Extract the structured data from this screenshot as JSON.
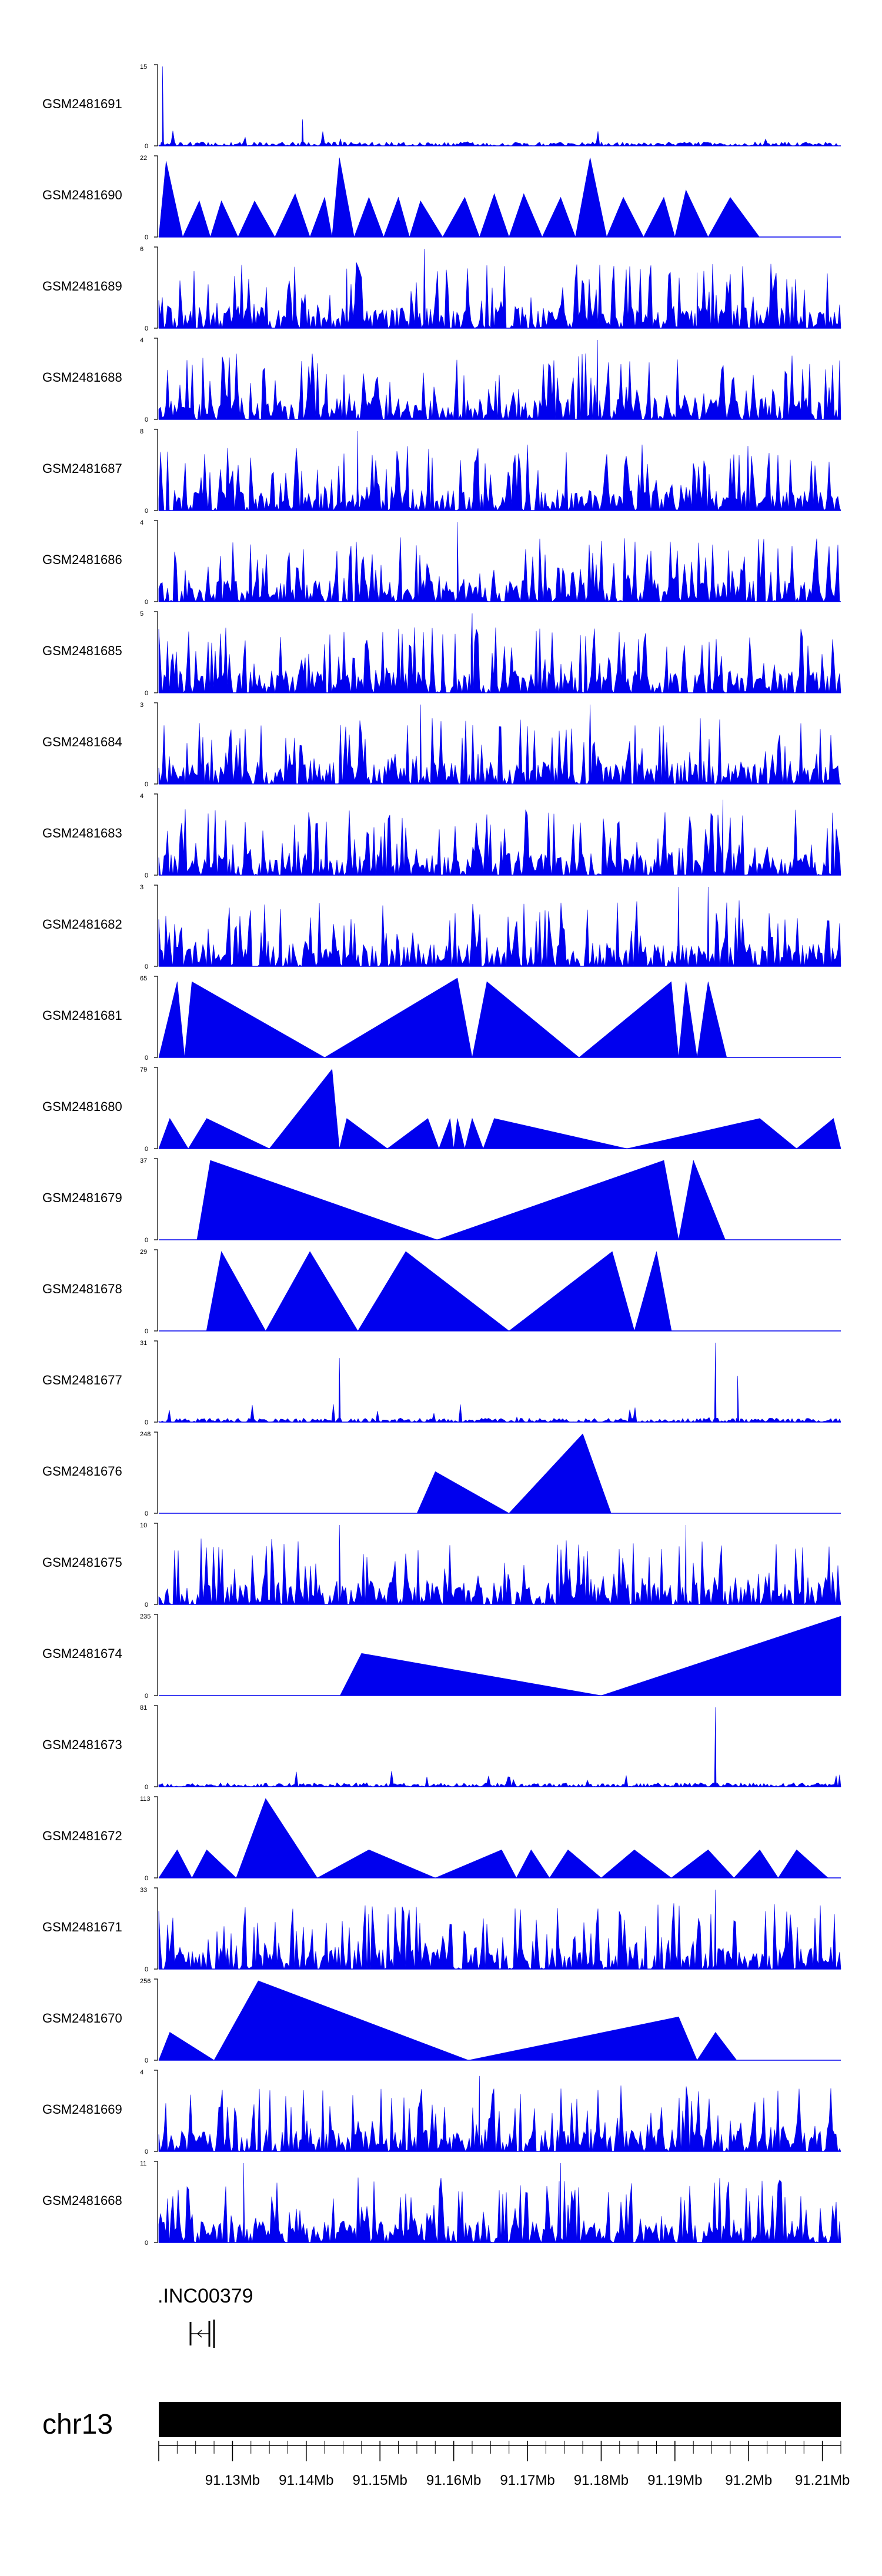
{
  "chart_data": {
    "type": "area",
    "title": "",
    "chromosome": "chr13",
    "gene_label": ".INC00379",
    "axis_unit": "Mb",
    "x_range_mb": [
      91.12,
      91.2125
    ],
    "x_tick_labels": [
      "91.13Mb",
      "91.14Mb",
      "91.15Mb",
      "91.16Mb",
      "91.17Mb",
      "91.18Mb",
      "91.19Mb",
      "91.2Mb",
      "91.21Mb"
    ],
    "x_tick_values": [
      91.13,
      91.14,
      91.15,
      91.16,
      91.17,
      91.18,
      91.19,
      91.2,
      91.21
    ],
    "series_color": "#0000ee",
    "tracks": [
      {
        "name": "GSM2481691",
        "ymax": "15",
        "max": 15,
        "style": "sparse",
        "peaks": [
          [
            91.1205,
            15
          ],
          [
            91.1395,
            5
          ]
        ]
      },
      {
        "name": "GSM2481690",
        "ymax": "22",
        "max": 22,
        "style": "tri",
        "peaks": [
          [
            91.121,
            21
          ],
          [
            91.1255,
            10
          ],
          [
            91.1285,
            10
          ],
          [
            91.133,
            10
          ],
          [
            91.1385,
            12
          ],
          [
            91.1425,
            11
          ],
          [
            91.1445,
            22
          ],
          [
            91.1485,
            11
          ],
          [
            91.1525,
            11
          ],
          [
            91.1555,
            10
          ],
          [
            91.1615,
            11
          ],
          [
            91.1655,
            12
          ],
          [
            91.1695,
            12
          ],
          [
            91.1745,
            11
          ],
          [
            91.1785,
            22
          ],
          [
            91.183,
            11
          ],
          [
            91.1885,
            11
          ],
          [
            91.1915,
            13
          ],
          [
            91.1975,
            11
          ]
        ]
      },
      {
        "name": "GSM2481689",
        "ymax": "6",
        "max": 6,
        "style": "noise",
        "peaks": [
          [
            91.156,
            6
          ],
          [
            91.1455,
            4.5
          ],
          [
            91.193,
            4.2
          ]
        ]
      },
      {
        "name": "GSM2481688",
        "ymax": "4",
        "max": 4,
        "style": "noise",
        "peaks": [
          [
            91.1795,
            4
          ]
        ]
      },
      {
        "name": "GSM2481687",
        "ymax": "8",
        "max": 8,
        "style": "noise",
        "peaks": [
          [
            91.147,
            8
          ]
        ]
      },
      {
        "name": "GSM2481686",
        "ymax": "4",
        "max": 4,
        "style": "noise",
        "peaks": [
          [
            91.1605,
            4
          ]
        ]
      },
      {
        "name": "GSM2481685",
        "ymax": "5",
        "max": 5,
        "style": "noise",
        "peaks": [
          [
            91.1625,
            5
          ]
        ]
      },
      {
        "name": "GSM2481684",
        "ymax": "3",
        "max": 3,
        "style": "noise",
        "peaks": [
          [
            91.1555,
            3
          ],
          [
            91.1785,
            3
          ]
        ]
      },
      {
        "name": "GSM2481683",
        "ymax": "4",
        "max": 4,
        "style": "noise",
        "peaks": [
          [
            91.1965,
            3.8
          ]
        ]
      },
      {
        "name": "GSM2481682",
        "ymax": "3",
        "max": 3,
        "style": "noise",
        "peaks": [
          [
            91.1905,
            3
          ],
          [
            91.1945,
            3
          ]
        ]
      },
      {
        "name": "GSM2481681",
        "ymax": "65",
        "max": 65,
        "style": "tri",
        "peaks": [
          [
            91.1225,
            62
          ],
          [
            91.1245,
            62
          ],
          [
            91.1605,
            65
          ],
          [
            91.1645,
            62
          ],
          [
            91.1895,
            62
          ],
          [
            91.1915,
            62
          ],
          [
            91.1945,
            62
          ]
        ]
      },
      {
        "name": "GSM2481680",
        "ymax": "79",
        "max": 79,
        "style": "tri",
        "peaks": [
          [
            91.1215,
            30
          ],
          [
            91.1265,
            30
          ],
          [
            91.1435,
            79
          ],
          [
            91.1455,
            30
          ],
          [
            91.1565,
            30
          ],
          [
            91.1595,
            30
          ],
          [
            91.1605,
            30
          ],
          [
            91.1625,
            30
          ],
          [
            91.1655,
            30
          ],
          [
            91.2015,
            30
          ],
          [
            91.2115,
            30
          ]
        ]
      },
      {
        "name": "GSM2481679",
        "ymax": "37",
        "max": 37,
        "style": "tri",
        "peaks": [
          [
            91.127,
            37
          ],
          [
            91.1885,
            37
          ],
          [
            91.1925,
            37
          ]
        ]
      },
      {
        "name": "GSM2481678",
        "ymax": "29",
        "max": 29,
        "style": "tri",
        "peaks": [
          [
            91.1285,
            29
          ],
          [
            91.1405,
            29
          ],
          [
            91.1535,
            29
          ],
          [
            91.1815,
            29
          ],
          [
            91.1875,
            29
          ]
        ]
      },
      {
        "name": "GSM2481677",
        "ymax": "31",
        "max": 31,
        "style": "sparse",
        "peaks": [
          [
            91.1445,
            25
          ],
          [
            91.1955,
            31
          ],
          [
            91.1985,
            18
          ]
        ]
      },
      {
        "name": "GSM2481676",
        "ymax": "248",
        "max": 248,
        "style": "tri",
        "peaks": [
          [
            91.1575,
            130
          ],
          [
            91.1775,
            248
          ]
        ]
      },
      {
        "name": "GSM2481675",
        "ymax": "10",
        "max": 10,
        "style": "noise",
        "peaks": [
          [
            91.1445,
            10
          ],
          [
            91.1915,
            10
          ]
        ]
      },
      {
        "name": "GSM2481674",
        "ymax": "235",
        "max": 235,
        "style": "tri",
        "peaks": [
          [
            91.1475,
            125
          ],
          [
            91.2125,
            235
          ]
        ]
      },
      {
        "name": "GSM2481673",
        "ymax": "81",
        "max": 81,
        "style": "sparse",
        "peaks": [
          [
            91.1955,
            81
          ]
        ]
      },
      {
        "name": "GSM2481672",
        "ymax": "113",
        "max": 113,
        "style": "tri",
        "peaks": [
          [
            91.1225,
            40
          ],
          [
            91.1265,
            40
          ],
          [
            91.1345,
            113
          ],
          [
            91.1485,
            40
          ],
          [
            91.1665,
            40
          ],
          [
            91.1705,
            40
          ],
          [
            91.1755,
            40
          ],
          [
            91.1845,
            40
          ],
          [
            91.1945,
            40
          ],
          [
            91.2015,
            40
          ],
          [
            91.2065,
            40
          ]
        ]
      },
      {
        "name": "GSM2481671",
        "ymax": "33",
        "max": 33,
        "style": "noise",
        "peaks": [
          [
            91.1955,
            33
          ]
        ]
      },
      {
        "name": "GSM2481670",
        "ymax": "256",
        "max": 256,
        "style": "tri",
        "peaks": [
          [
            91.1215,
            90
          ],
          [
            91.1335,
            256
          ],
          [
            91.1905,
            140
          ],
          [
            91.1955,
            90
          ]
        ]
      },
      {
        "name": "GSM2481669",
        "ymax": "4",
        "max": 4,
        "style": "noise",
        "peaks": [
          [
            91.1635,
            3.8
          ]
        ]
      },
      {
        "name": "GSM2481668",
        "ymax": "11",
        "max": 11,
        "style": "noise",
        "peaks": [
          [
            91.1315,
            11
          ],
          [
            91.1745,
            11
          ]
        ]
      }
    ]
  }
}
